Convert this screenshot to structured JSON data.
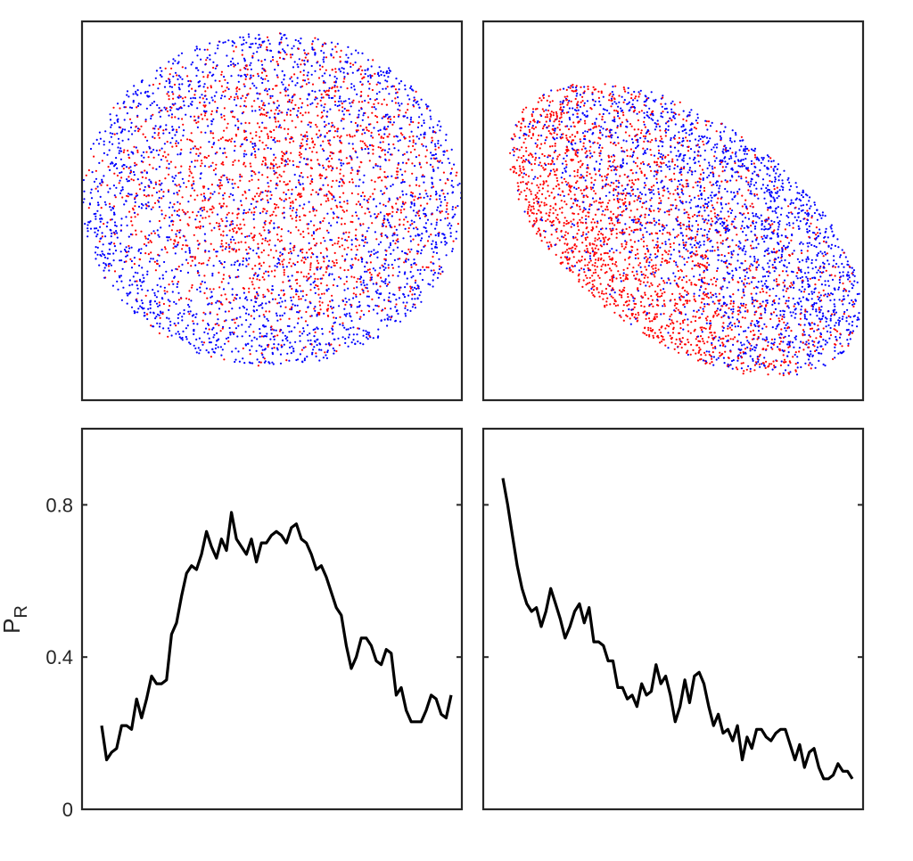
{
  "chart_data": [
    {
      "type": "scatter",
      "panel": "top-left",
      "xlim": [
        0,
        1
      ],
      "ylim": [
        0,
        1
      ],
      "axes_visible": false,
      "colors": {
        "red": "#ff0000",
        "blue": "#0000ff"
      },
      "title": "",
      "xlabel": "",
      "ylabel": ""
    },
    {
      "type": "scatter",
      "panel": "top-right",
      "xlim": [
        0,
        1
      ],
      "ylim": [
        0,
        1
      ],
      "axes_visible": false,
      "colors": {
        "red": "#ff0000",
        "blue": "#0000ff"
      },
      "title": "",
      "xlabel": "",
      "ylabel": ""
    },
    {
      "type": "line",
      "panel": "bottom-left",
      "title": "",
      "xlabel": "",
      "ylabel": "P",
      "ylabel_sub": "R",
      "ylim": [
        0,
        1
      ],
      "yticks": [
        0,
        0.4,
        0.8
      ],
      "ytick_labels": [
        "0",
        "0.4",
        "0.8"
      ],
      "line_color": "#000000",
      "x": [
        0,
        1,
        2,
        3,
        4,
        5,
        6,
        7,
        8,
        9,
        10,
        11,
        12,
        13,
        14,
        15,
        16,
        17,
        18,
        19,
        20,
        21,
        22,
        23,
        24,
        25,
        26,
        27,
        28,
        29,
        30,
        31,
        32,
        33,
        34,
        35,
        36,
        37,
        38,
        39,
        40,
        41,
        42,
        43,
        44,
        45,
        46,
        47,
        48,
        49,
        50,
        51,
        52,
        53,
        54,
        55,
        56,
        57,
        58,
        59,
        60,
        61,
        62,
        63,
        64,
        65,
        66,
        67,
        68,
        69,
        70
      ],
      "y": [
        0.22,
        0.13,
        0.15,
        0.16,
        0.22,
        0.22,
        0.21,
        0.29,
        0.24,
        0.29,
        0.35,
        0.33,
        0.33,
        0.34,
        0.46,
        0.49,
        0.56,
        0.62,
        0.64,
        0.63,
        0.67,
        0.73,
        0.69,
        0.66,
        0.71,
        0.68,
        0.78,
        0.71,
        0.69,
        0.67,
        0.71,
        0.65,
        0.7,
        0.7,
        0.72,
        0.73,
        0.72,
        0.7,
        0.74,
        0.75,
        0.71,
        0.7,
        0.67,
        0.63,
        0.64,
        0.61,
        0.57,
        0.53,
        0.51,
        0.43,
        0.37,
        0.4,
        0.45,
        0.45,
        0.43,
        0.39,
        0.38,
        0.42,
        0.41,
        0.3,
        0.32,
        0.26,
        0.23,
        0.23,
        0.23,
        0.26,
        0.3,
        0.29,
        0.25,
        0.24,
        0.3
      ]
    },
    {
      "type": "line",
      "panel": "bottom-right",
      "title": "",
      "xlabel": "",
      "ylabel": "",
      "ylim": [
        0,
        1
      ],
      "yticks": [
        0,
        0.4,
        0.8
      ],
      "line_color": "#000000",
      "x": [
        0,
        1,
        2,
        3,
        4,
        5,
        6,
        7,
        8,
        9,
        10,
        11,
        12,
        13,
        14,
        15,
        16,
        17,
        18,
        19,
        20,
        21,
        22,
        23,
        24,
        25,
        26,
        27,
        28,
        29,
        30,
        31,
        32,
        33,
        34,
        35,
        36,
        37,
        38,
        39,
        40,
        41,
        42,
        43,
        44,
        45,
        46,
        47,
        48,
        49,
        50,
        51,
        52,
        53,
        54,
        55,
        56,
        57,
        58,
        59,
        60,
        61,
        62,
        63,
        64,
        65,
        66,
        67,
        68,
        69,
        70,
        71,
        72,
        73
      ],
      "y": [
        0.87,
        0.8,
        0.72,
        0.64,
        0.58,
        0.54,
        0.52,
        0.53,
        0.48,
        0.52,
        0.58,
        0.54,
        0.5,
        0.45,
        0.48,
        0.52,
        0.54,
        0.49,
        0.53,
        0.44,
        0.44,
        0.43,
        0.39,
        0.39,
        0.32,
        0.32,
        0.29,
        0.3,
        0.27,
        0.33,
        0.3,
        0.31,
        0.38,
        0.33,
        0.35,
        0.3,
        0.23,
        0.27,
        0.34,
        0.28,
        0.35,
        0.36,
        0.33,
        0.27,
        0.22,
        0.25,
        0.2,
        0.21,
        0.18,
        0.22,
        0.13,
        0.19,
        0.16,
        0.21,
        0.21,
        0.19,
        0.18,
        0.2,
        0.21,
        0.21,
        0.17,
        0.13,
        0.17,
        0.11,
        0.15,
        0.16,
        0.11,
        0.08,
        0.08,
        0.09,
        0.12,
        0.1,
        0.1,
        0.08
      ]
    }
  ]
}
